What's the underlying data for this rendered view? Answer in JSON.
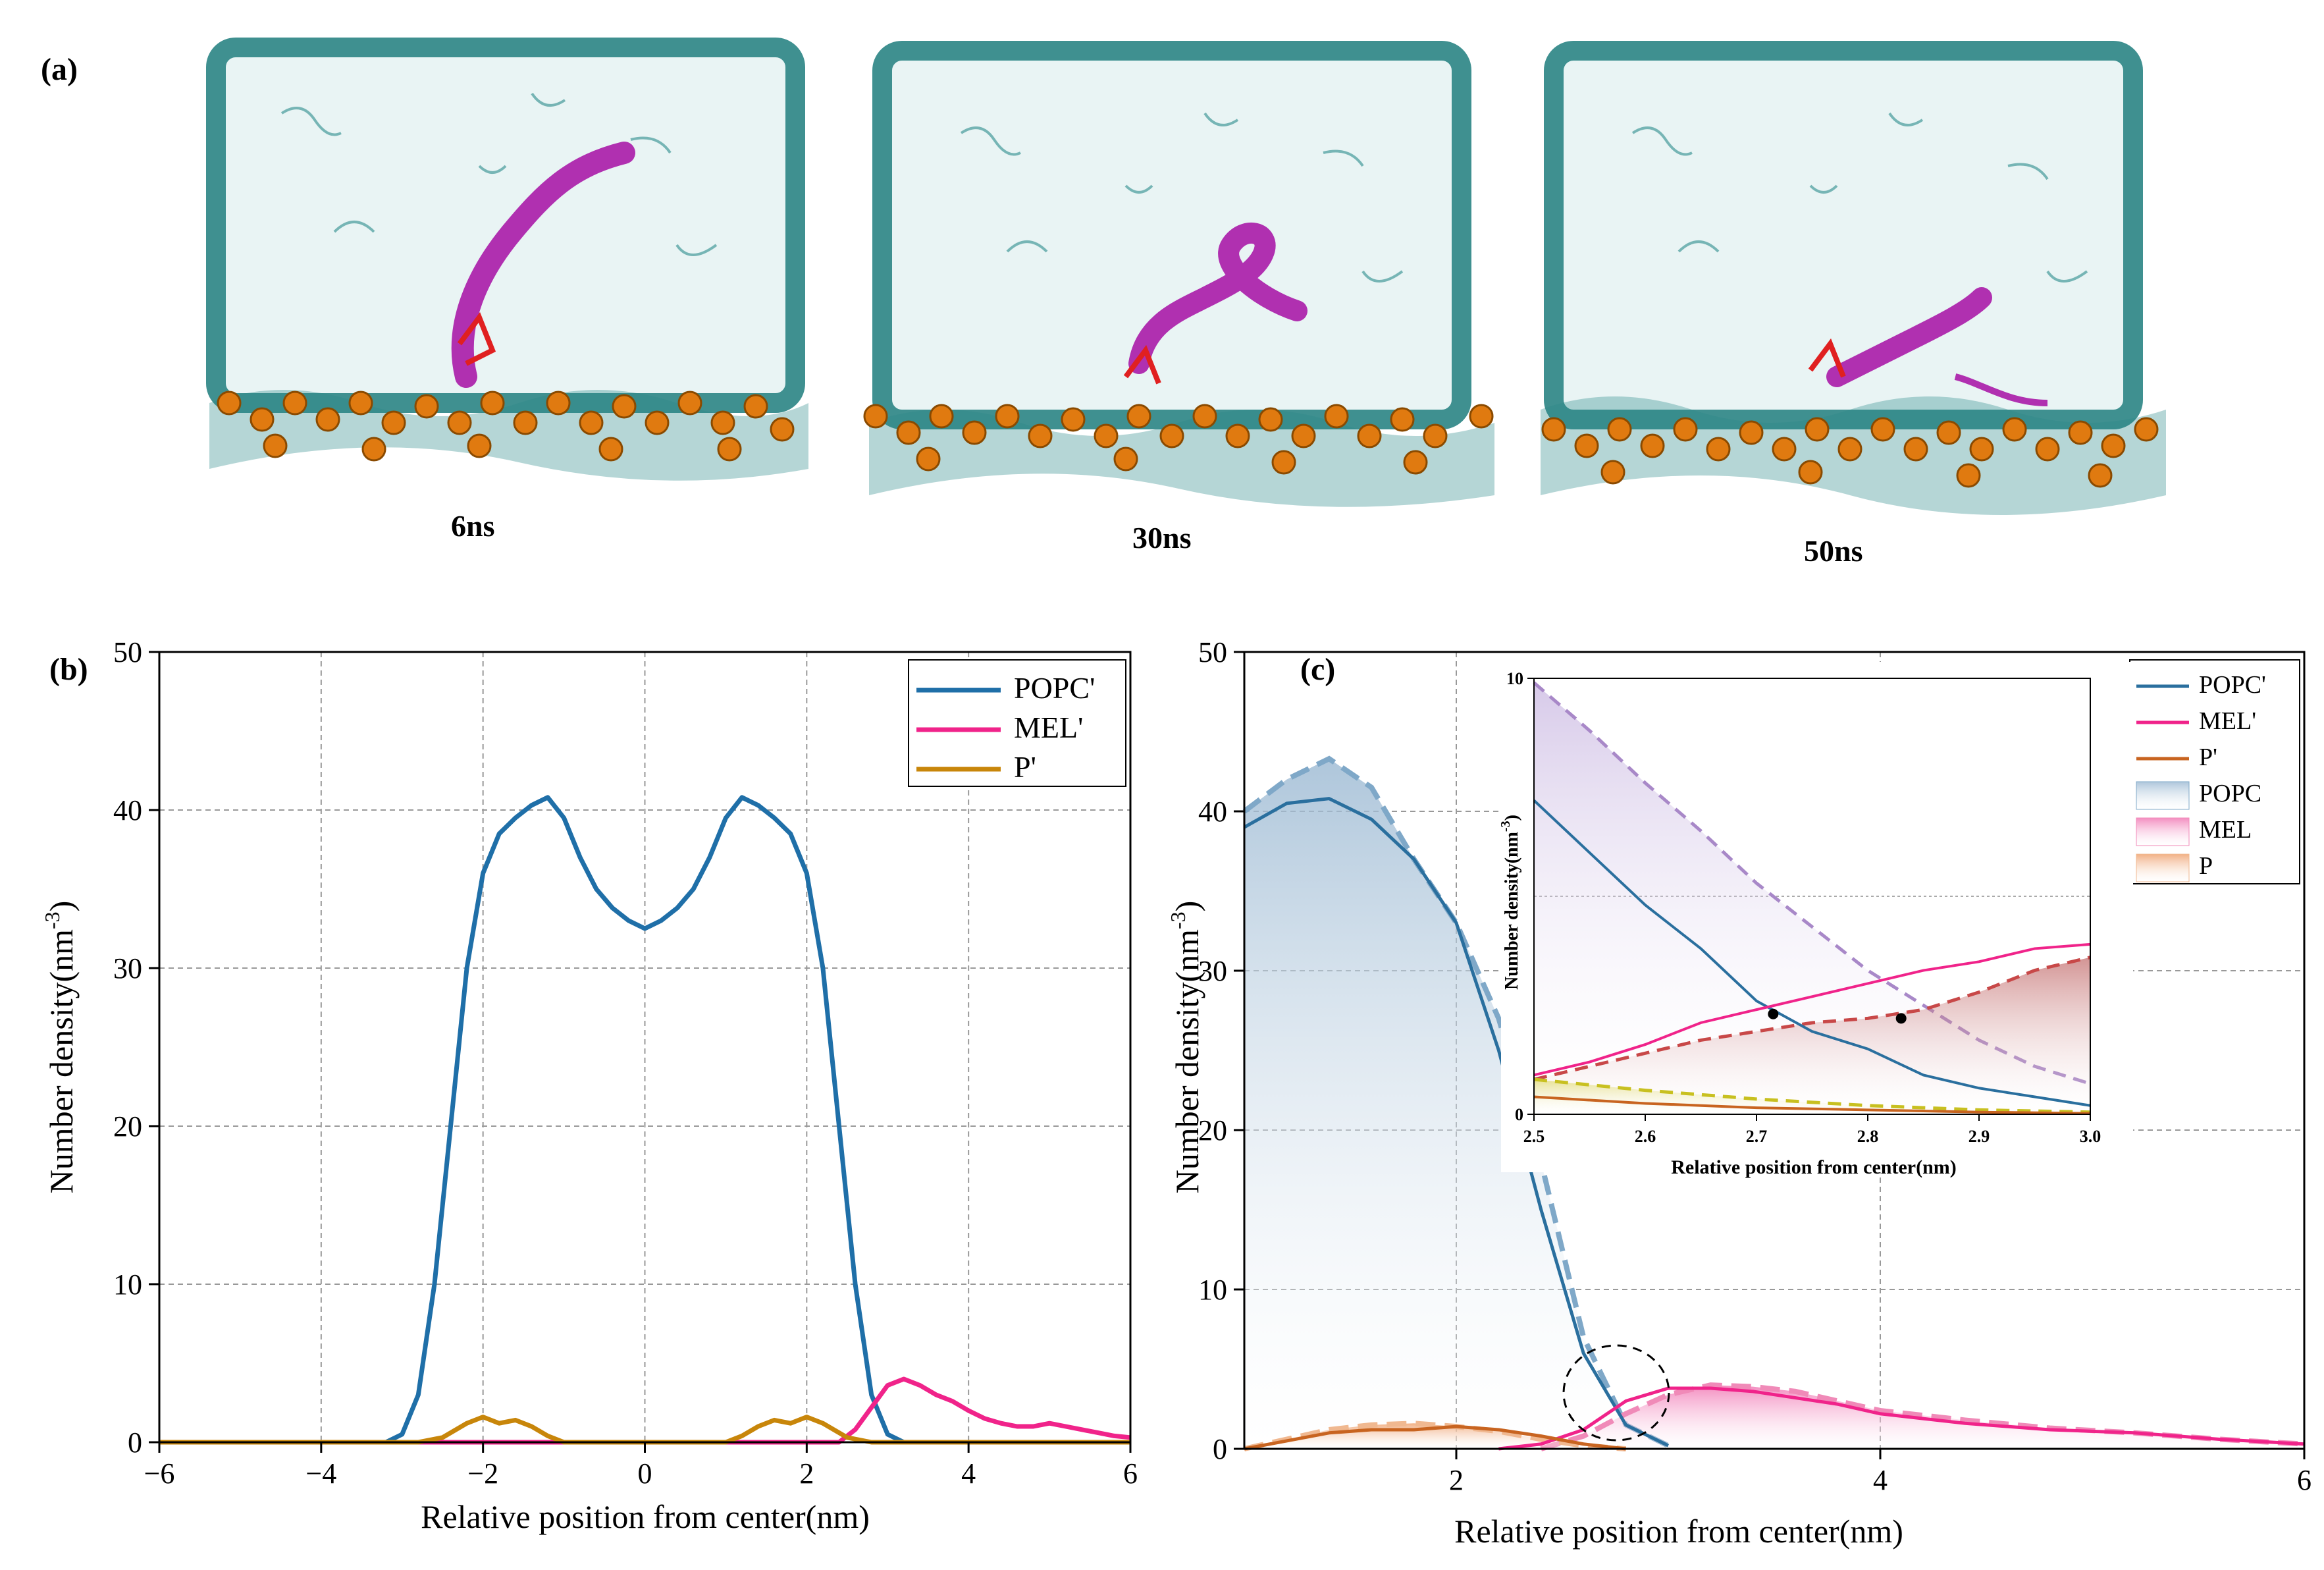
{
  "panel_a": {
    "label": "(a)",
    "snapshots": [
      {
        "caption": "6ns"
      },
      {
        "caption": "30ns"
      },
      {
        "caption": "50ns"
      }
    ],
    "colors": {
      "water": "#1e7d7d",
      "helix": "#b030b0",
      "phosphate": "#e07a10",
      "residue": "#e02020"
    }
  },
  "chart_data": [
    {
      "panel": "(b)",
      "type": "line",
      "xlabel": "Relative position from center(nm)",
      "ylabel": "Number density(nm-3)",
      "ylabel_main": "Number density(nm",
      "ylabel_sup": "-3",
      "ylabel_tail": ")",
      "xlim": [
        -6,
        6
      ],
      "ylim": [
        0,
        50
      ],
      "xticks": [
        -6,
        -4,
        -2,
        0,
        2,
        4,
        6
      ],
      "xtick_labels": [
        "−6",
        "−4",
        "−2",
        "0",
        "2",
        "4",
        "6"
      ],
      "yticks": [
        0,
        10,
        20,
        30,
        40,
        50
      ],
      "grid": true,
      "legend_position": "top-right",
      "series": [
        {
          "name": "POPC'",
          "color": "#1f6fa8",
          "x": [
            -6,
            -3.2,
            -3.0,
            -2.8,
            -2.6,
            -2.4,
            -2.2,
            -2.0,
            -1.8,
            -1.6,
            -1.4,
            -1.2,
            -1.0,
            -0.8,
            -0.6,
            -0.4,
            -0.2,
            0,
            0.2,
            0.4,
            0.6,
            0.8,
            1.0,
            1.2,
            1.4,
            1.6,
            1.8,
            2.0,
            2.2,
            2.4,
            2.6,
            2.8,
            3.0,
            3.2,
            6
          ],
          "y": [
            0,
            0,
            0.5,
            3,
            10,
            20,
            30,
            36,
            38.5,
            39.5,
            40.3,
            40.8,
            39.5,
            37,
            35,
            33.8,
            33,
            32.5,
            33,
            33.8,
            35,
            37,
            39.5,
            40.8,
            40.3,
            39.5,
            38.5,
            36,
            30,
            20,
            10,
            3,
            0.5,
            0,
            0
          ]
        },
        {
          "name": "MEL'",
          "color": "#f0238a",
          "x": [
            -6,
            2.4,
            2.6,
            2.8,
            3.0,
            3.2,
            3.4,
            3.6,
            3.8,
            4.0,
            4.2,
            4.4,
            4.6,
            4.8,
            5.0,
            5.2,
            5.4,
            5.6,
            5.8,
            6.0
          ],
          "y": [
            0,
            0,
            0.8,
            2.2,
            3.6,
            4.0,
            3.6,
            3.0,
            2.6,
            2.0,
            1.5,
            1.2,
            1.0,
            1.0,
            1.2,
            1.0,
            0.8,
            0.6,
            0.4,
            0.3
          ]
        },
        {
          "name": "P'",
          "color": "#c8860a",
          "x": [
            -6,
            -2.8,
            -2.5,
            -2.2,
            -2.0,
            -1.8,
            -1.6,
            -1.4,
            -1.2,
            -1.0,
            1.0,
            1.2,
            1.4,
            1.6,
            1.8,
            2.0,
            2.2,
            2.5,
            2.8,
            6
          ],
          "y": [
            0,
            0,
            0.3,
            1.2,
            1.6,
            1.2,
            1.4,
            1.0,
            0.4,
            0,
            0,
            0.4,
            1.0,
            1.4,
            1.2,
            1.6,
            1.2,
            0.3,
            0,
            0
          ]
        }
      ]
    },
    {
      "panel": "(c)",
      "type": "area",
      "xlabel": "Relative position from center(nm)",
      "ylabel": "Number density(nm-3)",
      "ylabel_main": "Number density(nm",
      "ylabel_sup": "-3",
      "ylabel_tail": ")",
      "xlim": [
        1,
        6
      ],
      "ylim": [
        0,
        50
      ],
      "xticks": [
        2,
        4,
        6
      ],
      "xtick_labels": [
        "2",
        "4",
        "6"
      ],
      "yticks": [
        0,
        10,
        20,
        30,
        40,
        50
      ],
      "grid": true,
      "legend_position": "top-right",
      "series": [
        {
          "name": "POPC'",
          "style": "line",
          "color": "#2a6f9e",
          "x": [
            1.0,
            1.2,
            1.4,
            1.6,
            1.8,
            2.0,
            2.2,
            2.4,
            2.6,
            2.8,
            3.0
          ],
          "y": [
            39,
            40.5,
            40.8,
            39.5,
            37,
            33,
            25,
            15,
            6,
            1.5,
            0.2
          ]
        },
        {
          "name": "MEL'",
          "style": "line",
          "color": "#f0238a",
          "x": [
            2.2,
            2.4,
            2.6,
            2.8,
            3.0,
            3.2,
            3.4,
            3.6,
            3.8,
            4.0,
            4.4,
            4.8,
            5.2,
            5.6,
            6.0
          ],
          "y": [
            0,
            0.3,
            1.2,
            3.0,
            3.8,
            3.8,
            3.6,
            3.2,
            2.8,
            2.2,
            1.6,
            1.2,
            1.0,
            0.6,
            0.3
          ]
        },
        {
          "name": "P'",
          "style": "line",
          "color": "#c86420",
          "x": [
            1.0,
            1.2,
            1.4,
            1.6,
            1.8,
            2.0,
            2.2,
            2.4,
            2.6,
            2.8
          ],
          "y": [
            0,
            0.5,
            1.0,
            1.2,
            1.2,
            1.4,
            1.2,
            0.8,
            0.3,
            0
          ]
        },
        {
          "name": "POPC",
          "style": "filled-dashed",
          "color": "#7fa8c8",
          "x": [
            1.0,
            1.2,
            1.4,
            1.6,
            1.8,
            2.0,
            2.2,
            2.4,
            2.6,
            2.8,
            3.0
          ],
          "y": [
            40,
            42,
            43.3,
            41.5,
            37,
            33,
            27,
            18,
            7,
            1.5,
            0.2
          ]
        },
        {
          "name": "MEL",
          "style": "filled-dashed",
          "color": "#f08ab8",
          "x": [
            2.4,
            2.6,
            2.8,
            3.0,
            3.2,
            3.4,
            3.6,
            3.8,
            4.0,
            4.4,
            4.8,
            5.2,
            5.6,
            6.0
          ],
          "y": [
            0,
            0.8,
            2.2,
            3.4,
            4.0,
            3.9,
            3.6,
            3.0,
            2.4,
            1.8,
            1.3,
            1.0,
            0.6,
            0.3
          ]
        },
        {
          "name": "P",
          "style": "filled-dashed",
          "color": "#f0b890",
          "x": [
            1.0,
            1.2,
            1.4,
            1.6,
            1.8,
            2.0,
            2.2,
            2.4,
            2.6,
            2.8
          ],
          "y": [
            0,
            0.6,
            1.2,
            1.5,
            1.6,
            1.4,
            1.1,
            0.6,
            0.2,
            0
          ]
        }
      ],
      "inset": {
        "xlabel": "Relative position from center(nm)",
        "ylabel": "Number density(nm-3)",
        "ylabel_main": "Number density(nm",
        "ylabel_sup": "-3",
        "ylabel_tail": ")",
        "xlim": [
          2.5,
          3.0
        ],
        "ylim": [
          0,
          10
        ],
        "xticks": [
          2.5,
          2.6,
          2.7,
          2.8,
          2.9,
          3.0
        ],
        "xtick_labels": [
          "2.5",
          "2.6",
          "2.7",
          "2.8",
          "2.9",
          "3.0"
        ],
        "yticks": [
          0,
          10
        ],
        "ytick_labels": [
          "0",
          "10"
        ],
        "reference_line_y": 5,
        "series": [
          {
            "name": "POPC'",
            "style": "line",
            "color": "#2a6f9e",
            "x": [
              2.5,
              2.55,
              2.6,
              2.65,
              2.7,
              2.75,
              2.8,
              2.85,
              2.9,
              2.95,
              3.0
            ],
            "y": [
              7.2,
              6.0,
              4.8,
              3.8,
              2.6,
              1.9,
              1.5,
              0.9,
              0.6,
              0.4,
              0.2
            ]
          },
          {
            "name": "MEL'",
            "style": "line",
            "color": "#f0238a",
            "x": [
              2.5,
              2.55,
              2.6,
              2.65,
              2.7,
              2.75,
              2.8,
              2.85,
              2.9,
              2.95,
              3.0
            ],
            "y": [
              0.9,
              1.2,
              1.6,
              2.1,
              2.4,
              2.7,
              3.0,
              3.3,
              3.5,
              3.8,
              3.9
            ]
          },
          {
            "name": "P'",
            "style": "line",
            "color": "#c86420",
            "x": [
              2.5,
              2.6,
              2.7,
              2.8,
              2.9,
              3.0
            ],
            "y": [
              0.4,
              0.25,
              0.15,
              0.1,
              0.05,
              0.02
            ]
          },
          {
            "name": "POPC",
            "style": "filled-dashed",
            "color": "#a888c8",
            "x": [
              2.5,
              2.55,
              2.6,
              2.65,
              2.7,
              2.75,
              2.8,
              2.85,
              2.9,
              2.95,
              3.0
            ],
            "y": [
              9.9,
              8.8,
              7.6,
              6.5,
              5.3,
              4.3,
              3.3,
              2.5,
              1.7,
              1.1,
              0.7
            ]
          },
          {
            "name": "MEL",
            "style": "filled-dashed",
            "color": "#c84848",
            "x": [
              2.5,
              2.55,
              2.6,
              2.65,
              2.7,
              2.75,
              2.8,
              2.85,
              2.9,
              2.95,
              3.0
            ],
            "y": [
              0.8,
              1.1,
              1.4,
              1.7,
              1.9,
              2.1,
              2.2,
              2.4,
              2.8,
              3.3,
              3.6
            ]
          },
          {
            "name": "P",
            "style": "filled-dashed",
            "color": "#c8c020",
            "x": [
              2.5,
              2.6,
              2.7,
              2.8,
              2.9,
              3.0
            ],
            "y": [
              0.8,
              0.55,
              0.35,
              0.2,
              0.1,
              0.05
            ]
          }
        ],
        "markers": [
          {
            "x": 2.715,
            "y": 2.3
          },
          {
            "x": 2.83,
            "y": 2.2
          }
        ]
      }
    }
  ]
}
